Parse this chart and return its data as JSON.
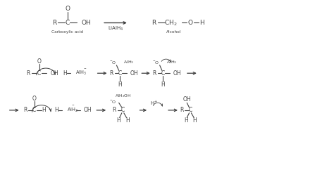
{
  "bg_color": "#ffffff",
  "line_color": "#404040",
  "text_color": "#404040",
  "figsize": [
    4.74,
    2.42
  ],
  "dpi": 100,
  "xlim": [
    0,
    10
  ],
  "ylim": [
    0,
    5
  ]
}
